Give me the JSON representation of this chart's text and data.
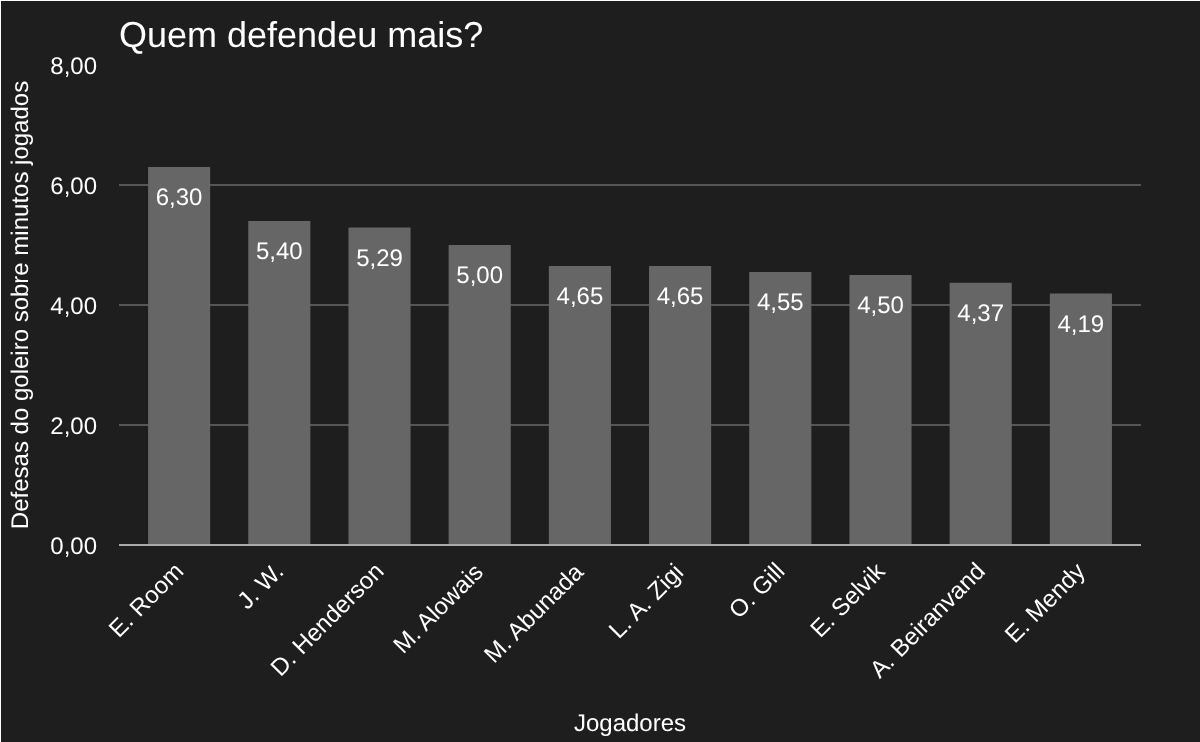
{
  "chart_data": {
    "type": "bar",
    "title": "Quem defendeu mais?",
    "xlabel": "Jogadores",
    "ylabel": "Defesas do goleiro sobre minutos jogados",
    "categories": [
      "E. Room",
      "J. W.",
      "D. Henderson",
      "M. Alowais",
      "M. Abunada",
      "L. A. Zigi",
      "O. Gill",
      "E. Selvik",
      "A. Beiranvand",
      "E. Mendy"
    ],
    "values": [
      6.3,
      5.4,
      5.29,
      5.0,
      4.65,
      4.65,
      4.55,
      4.5,
      4.37,
      4.19
    ],
    "value_labels": [
      "6,30",
      "5,40",
      "5,29",
      "5,00",
      "4,65",
      "4,65",
      "4,55",
      "4,50",
      "4,37",
      "4,19"
    ],
    "color": "#666666",
    "ylim": [
      0,
      8
    ],
    "yticks": [
      {
        "value": 0,
        "label": "0,00"
      },
      {
        "value": 2,
        "label": "2,00"
      },
      {
        "value": 4,
        "label": "4,00"
      },
      {
        "value": 6,
        "label": "6,00"
      },
      {
        "value": 8,
        "label": "8,00"
      }
    ],
    "grid": "y"
  }
}
